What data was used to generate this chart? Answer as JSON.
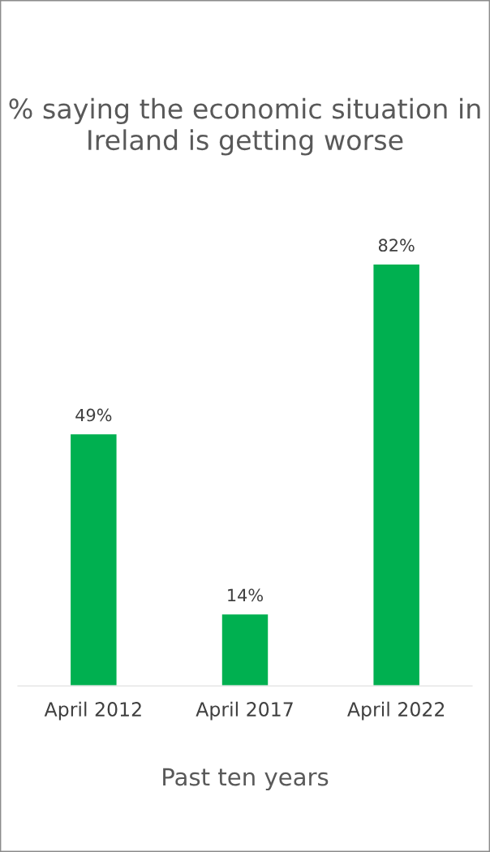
{
  "chart_data": {
    "type": "bar",
    "title": "% saying the economic situation in Ireland is getting worse",
    "xlabel": "Past ten years",
    "categories": [
      "April 2012",
      "April 2017",
      "April 2022"
    ],
    "values": [
      49,
      14,
      82
    ],
    "color": "#00b050",
    "value_labels": [
      "49%",
      "14%",
      "82%"
    ],
    "grid": false,
    "legend": false
  }
}
